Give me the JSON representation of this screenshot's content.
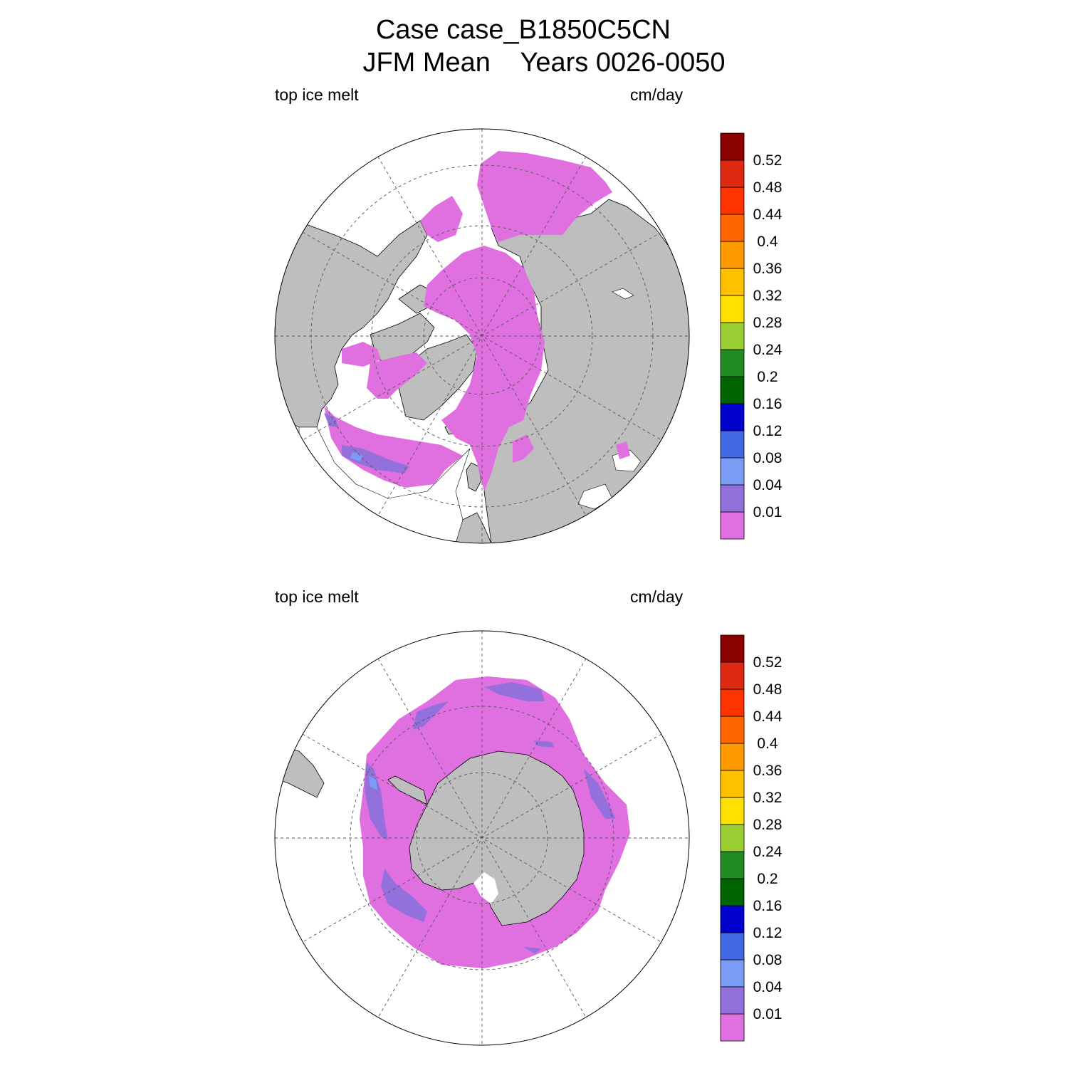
{
  "title": {
    "line1": "Case case_B1850C5CN",
    "line2": "JFM Mean    Years 0026-0050"
  },
  "panels": [
    {
      "id": "nh",
      "left_label": "top ice melt",
      "right_label": "cm/day"
    },
    {
      "id": "sh",
      "left_label": "top ice melt",
      "right_label": "cm/day"
    }
  ],
  "colorbar": {
    "levels": [
      "0.01",
      "0.04",
      "0.08",
      "0.12",
      "0.16",
      "0.2",
      "0.24",
      "0.28",
      "0.32",
      "0.36",
      "0.4",
      "0.44",
      "0.48",
      "0.52"
    ],
    "colors": [
      "#e070e0",
      "#9370db",
      "#7b9cf5",
      "#4169e1",
      "#0000cd",
      "#006400",
      "#228b22",
      "#9acd32",
      "#ffe000",
      "#ffc000",
      "#ff9a00",
      "#ff6600",
      "#ff3300",
      "#dd2a10",
      "#8b0000"
    ]
  },
  "map_colors": {
    "land": "#bebebe",
    "ocean": "#ffffff",
    "ice": "#e070e0"
  }
}
